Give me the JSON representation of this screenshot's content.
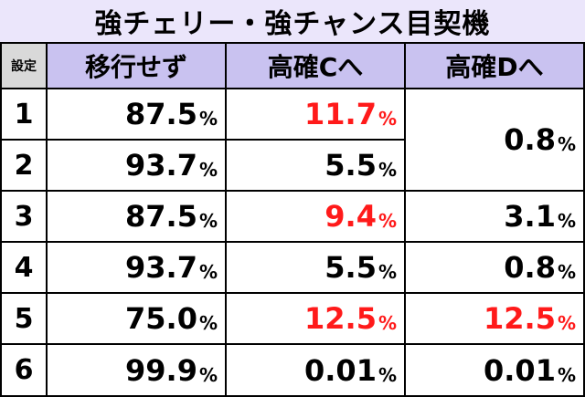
{
  "title": "強チェリー・強チャンス目契機",
  "headers": {
    "setting": "設定",
    "col1": "移行せず",
    "col2": "高確Cへ",
    "col3": "高確Dへ"
  },
  "pct_symbol": "%",
  "colors": {
    "title_bg": "#ebe6fb",
    "header_bg": "#c9c2f0",
    "setting_header_bg": "#d9d9d9",
    "highlight": "#ff1a1a",
    "grid": "#000000"
  },
  "rows": [
    {
      "setting": "1",
      "col1": "87.5",
      "col2": "11.7",
      "col2_red": true
    },
    {
      "setting": "2",
      "col1": "93.7",
      "col2": "5.5"
    },
    {
      "setting": "3",
      "col1": "87.5",
      "col2": "9.4",
      "col2_red": true,
      "col3": "3.1"
    },
    {
      "setting": "4",
      "col1": "93.7",
      "col2": "5.5",
      "col3": "0.8"
    },
    {
      "setting": "5",
      "col1": "75.0",
      "col2": "12.5",
      "col2_red": true,
      "col3": "12.5",
      "col3_red": true
    },
    {
      "setting": "6",
      "col1": "99.9",
      "col2": "0.01",
      "col3": "0.01"
    }
  ],
  "merged_col3_rows_1_2": "0.8"
}
